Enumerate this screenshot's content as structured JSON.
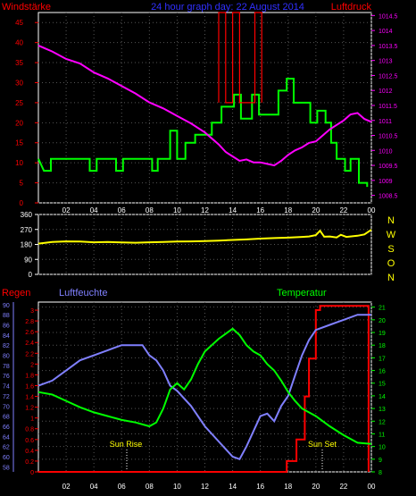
{
  "header": {
    "left_label": "Windstärke",
    "title": "24 hour graph day: 22 August 2014",
    "right_label": "Luftdruck"
  },
  "wind_block": {
    "side_labels": [
      "N",
      "W",
      "S",
      "O",
      "N"
    ]
  },
  "lower_block": {
    "rain_label": "Regen",
    "humidity_label": "Luftfeuchte",
    "temperature_label": "Temperatur",
    "sunrise_label": "Sun Rise",
    "sunset_label": "Sun Set"
  },
  "colors": {
    "wind_speed": "#00ff00",
    "gust": "#ff0000",
    "pressure": "#ff00ff",
    "direction": "#ffff00",
    "rain": "#ff0000",
    "humidity": "#8080ff",
    "temperature": "#00ff00"
  },
  "chart_data": [
    {
      "type": "line",
      "name": "wind-pressure",
      "x_ticks": [
        "02",
        "04",
        "06",
        "08",
        "10",
        "12",
        "14",
        "16",
        "18",
        "20",
        "22",
        "00"
      ],
      "xlim": [
        0,
        24
      ],
      "y_left": {
        "ticks": [
          0,
          5,
          10,
          15,
          20,
          25,
          30,
          35,
          40,
          45
        ],
        "ylim": [
          0,
          47.5
        ]
      },
      "y_right": {
        "ticks": [
          "1008.5",
          "1009",
          "1009.5",
          "1010",
          "1010.5",
          "1011",
          "1011.5",
          "1012",
          "1012.5",
          "1013",
          "1013.5",
          "1014",
          "1014.5"
        ],
        "ylim": [
          1008.25,
          1014.6
        ]
      },
      "series": [
        {
          "key": "wind_speed",
          "values": [
            [
              0,
              11
            ],
            [
              0.4,
              8
            ],
            [
              0.9,
              8
            ],
            [
              0.9,
              11
            ],
            [
              3.7,
              11
            ],
            [
              3.7,
              8
            ],
            [
              4.2,
              8
            ],
            [
              4.2,
              11
            ],
            [
              5.6,
              11
            ],
            [
              5.6,
              8
            ],
            [
              6.1,
              8
            ],
            [
              6.1,
              11
            ],
            [
              8.2,
              11
            ],
            [
              8.2,
              8
            ],
            [
              8.6,
              8
            ],
            [
              8.6,
              11
            ],
            [
              9.5,
              11
            ],
            [
              9.5,
              18
            ],
            [
              10,
              18
            ],
            [
              10,
              11
            ],
            [
              10.6,
              11
            ],
            [
              10.6,
              15
            ],
            [
              11.3,
              15
            ],
            [
              11.3,
              17
            ],
            [
              12.5,
              17
            ],
            [
              12.5,
              20
            ],
            [
              13.2,
              20
            ],
            [
              13.2,
              24
            ],
            [
              14.1,
              24
            ],
            [
              14.1,
              27
            ],
            [
              14.6,
              27
            ],
            [
              14.6,
              21
            ],
            [
              15.4,
              21
            ],
            [
              15.4,
              27
            ],
            [
              15.9,
              27
            ],
            [
              15.9,
              22
            ],
            [
              17.3,
              22
            ],
            [
              17.3,
              28
            ],
            [
              17.9,
              28
            ],
            [
              17.9,
              31
            ],
            [
              18.4,
              31
            ],
            [
              18.4,
              25
            ],
            [
              19.6,
              25
            ],
            [
              19.6,
              20
            ],
            [
              20.1,
              20
            ],
            [
              20.1,
              23
            ],
            [
              20.7,
              23
            ],
            [
              20.7,
              20
            ],
            [
              21.1,
              20
            ],
            [
              21.1,
              15
            ],
            [
              21.5,
              15
            ],
            [
              21.5,
              11
            ],
            [
              22.1,
              11
            ],
            [
              22.1,
              8
            ],
            [
              22.5,
              8
            ],
            [
              22.5,
              11
            ],
            [
              23.1,
              11
            ],
            [
              23.1,
              5
            ],
            [
              23.7,
              5
            ],
            [
              23.7,
              4
            ]
          ]
        },
        {
          "key": "gust",
          "values": [
            [
              13,
              25
            ],
            [
              13,
              49
            ],
            [
              13.5,
              49
            ],
            [
              13.5,
              25
            ],
            [
              14,
              25
            ],
            [
              14,
              55
            ],
            [
              14.5,
              55
            ],
            [
              14.5,
              25
            ],
            [
              15.6,
              25
            ],
            [
              15.6,
              49
            ],
            [
              16.1,
              49
            ],
            [
              16.1,
              25
            ]
          ]
        },
        {
          "key": "pressure",
          "axis": "right",
          "values": [
            [
              0,
              1013.5
            ],
            [
              0.5,
              1013.4
            ],
            [
              1,
              1013.3
            ],
            [
              2,
              1013.05
            ],
            [
              3,
              1012.9
            ],
            [
              4,
              1012.6
            ],
            [
              5,
              1012.4
            ],
            [
              6,
              1012.15
            ],
            [
              7,
              1011.9
            ],
            [
              8,
              1011.6
            ],
            [
              9,
              1011.4
            ],
            [
              10,
              1011.15
            ],
            [
              11,
              1010.9
            ],
            [
              12,
              1010.6
            ],
            [
              13,
              1010.2
            ],
            [
              13.5,
              1009.95
            ],
            [
              14,
              1009.8
            ],
            [
              14.5,
              1009.65
            ],
            [
              15,
              1009.7
            ],
            [
              15.5,
              1009.6
            ],
            [
              16,
              1009.6
            ],
            [
              16.5,
              1009.55
            ],
            [
              17,
              1009.5
            ],
            [
              17.5,
              1009.65
            ],
            [
              18,
              1009.85
            ],
            [
              18.5,
              1010.0
            ],
            [
              19,
              1010.1
            ],
            [
              19.5,
              1010.25
            ],
            [
              20,
              1010.3
            ],
            [
              20.5,
              1010.5
            ],
            [
              21,
              1010.7
            ],
            [
              21.5,
              1010.85
            ],
            [
              22,
              1011.0
            ],
            [
              22.5,
              1011.2
            ],
            [
              23,
              1011.25
            ],
            [
              23.5,
              1011.05
            ],
            [
              24,
              1010.95
            ]
          ]
        }
      ]
    },
    {
      "type": "line",
      "name": "wind-direction",
      "x_ticks": [
        "02",
        "04",
        "06",
        "08",
        "10",
        "12",
        "14",
        "16",
        "18",
        "20",
        "22",
        "00"
      ],
      "xlim": [
        0,
        24
      ],
      "y": {
        "ticks": [
          0,
          90,
          180,
          270,
          360
        ],
        "ylim": [
          0,
          360
        ]
      },
      "series": [
        {
          "key": "direction",
          "values": [
            [
              0,
              185
            ],
            [
              1,
              195
            ],
            [
              2,
              198
            ],
            [
              3,
              197
            ],
            [
              4,
              193
            ],
            [
              5,
              195
            ],
            [
              6,
              192
            ],
            [
              7,
              190
            ],
            [
              8,
              193
            ],
            [
              9,
              195
            ],
            [
              10,
              197
            ],
            [
              11,
              198
            ],
            [
              12,
              200
            ],
            [
              13,
              203
            ],
            [
              14,
              207
            ],
            [
              15,
              210
            ],
            [
              16,
              215
            ],
            [
              17,
              218
            ],
            [
              18,
              221
            ],
            [
              19,
              225
            ],
            [
              19.5,
              228
            ],
            [
              20,
              236
            ],
            [
              20.3,
              262
            ],
            [
              20.6,
              226
            ],
            [
              21,
              228
            ],
            [
              21.5,
              222
            ],
            [
              21.8,
              238
            ],
            [
              22.2,
              225
            ],
            [
              23,
              232
            ],
            [
              23.5,
              240
            ],
            [
              24,
              268
            ]
          ]
        }
      ]
    },
    {
      "type": "line",
      "name": "rain-humidity-temperature",
      "x_ticks": [
        "02",
        "04",
        "06",
        "08",
        "10",
        "12",
        "14",
        "16",
        "18",
        "20",
        "22",
        "00"
      ],
      "xlim": [
        0,
        24
      ],
      "y_rain": {
        "ticks": [
          "0",
          "0.2",
          "0.4",
          "0.6",
          "0.8",
          "1",
          "1.2",
          "1.4",
          "1.6",
          "1.8",
          "2",
          "2.2",
          "2.4",
          "2.6",
          "2.8",
          "3"
        ],
        "ylim": [
          0,
          3.15
        ]
      },
      "y_humidity": {
        "ticks": [
          58,
          60,
          62,
          64,
          66,
          68,
          70,
          72,
          74,
          76,
          78,
          80,
          82,
          84,
          86,
          88,
          90
        ],
        "ylim": [
          57,
          90.5
        ]
      },
      "y_temperature": {
        "ticks": [
          8,
          9,
          10,
          11,
          12,
          13,
          14,
          15,
          16,
          17,
          18,
          19,
          20,
          21
        ],
        "ylim": [
          8,
          21.4
        ]
      },
      "series": [
        {
          "key": "rain",
          "axis": "rain",
          "values": [
            [
              0,
              0
            ],
            [
              17.9,
              0
            ],
            [
              17.9,
              0.2
            ],
            [
              18.6,
              0.2
            ],
            [
              18.6,
              0.6
            ],
            [
              19.2,
              0.6
            ],
            [
              19.2,
              1.4
            ],
            [
              19.5,
              1.4
            ],
            [
              19.5,
              2.1
            ],
            [
              20,
              2.1
            ],
            [
              20,
              3.0
            ],
            [
              20.3,
              3.0
            ],
            [
              20.3,
              3.08
            ],
            [
              23.8,
              3.08
            ],
            [
              23.8,
              0
            ]
          ]
        },
        {
          "key": "humidity",
          "axis": "humidity",
          "values": [
            [
              0,
              74
            ],
            [
              1,
              75
            ],
            [
              2,
              77
            ],
            [
              3,
              79
            ],
            [
              4,
              80
            ],
            [
              5,
              81
            ],
            [
              6,
              82
            ],
            [
              7.5,
              82
            ],
            [
              8,
              80
            ],
            [
              8.5,
              79
            ],
            [
              9,
              77
            ],
            [
              9.5,
              74
            ],
            [
              10,
              73
            ],
            [
              11,
              70
            ],
            [
              12,
              66
            ],
            [
              13,
              63
            ],
            [
              14,
              60
            ],
            [
              14.5,
              59.5
            ],
            [
              15,
              62
            ],
            [
              15.5,
              65
            ],
            [
              16,
              68
            ],
            [
              16.5,
              68.5
            ],
            [
              17,
              67
            ],
            [
              17.5,
              70
            ],
            [
              18,
              72
            ],
            [
              18.5,
              76
            ],
            [
              19,
              80
            ],
            [
              19.5,
              83
            ],
            [
              20,
              85
            ],
            [
              21,
              86
            ],
            [
              22,
              87
            ],
            [
              23,
              88
            ],
            [
              24,
              88
            ]
          ]
        },
        {
          "key": "temperature",
          "axis": "temperature",
          "values": [
            [
              0,
              14.3
            ],
            [
              1,
              14.1
            ],
            [
              2,
              13.6
            ],
            [
              3,
              13.1
            ],
            [
              4,
              12.7
            ],
            [
              5,
              12.4
            ],
            [
              6,
              12.1
            ],
            [
              7,
              11.9
            ],
            [
              8,
              11.6
            ],
            [
              8.5,
              11.9
            ],
            [
              9,
              13.0
            ],
            [
              9.5,
              14.5
            ],
            [
              10,
              15.0
            ],
            [
              10.5,
              14.5
            ],
            [
              11,
              15.3
            ],
            [
              11.5,
              16.5
            ],
            [
              12,
              17.5
            ],
            [
              13,
              18.5
            ],
            [
              14,
              19.3
            ],
            [
              14.5,
              18.8
            ],
            [
              15,
              18.0
            ],
            [
              15.5,
              17.5
            ],
            [
              16,
              17.2
            ],
            [
              16.5,
              16.5
            ],
            [
              17,
              16.0
            ],
            [
              17.5,
              15.2
            ],
            [
              18,
              14.3
            ],
            [
              18.5,
              13.6
            ],
            [
              19,
              13.0
            ],
            [
              20,
              12.4
            ],
            [
              21,
              11.6
            ],
            [
              22,
              10.9
            ],
            [
              23,
              10.3
            ],
            [
              24,
              10.2
            ]
          ]
        }
      ]
    }
  ]
}
